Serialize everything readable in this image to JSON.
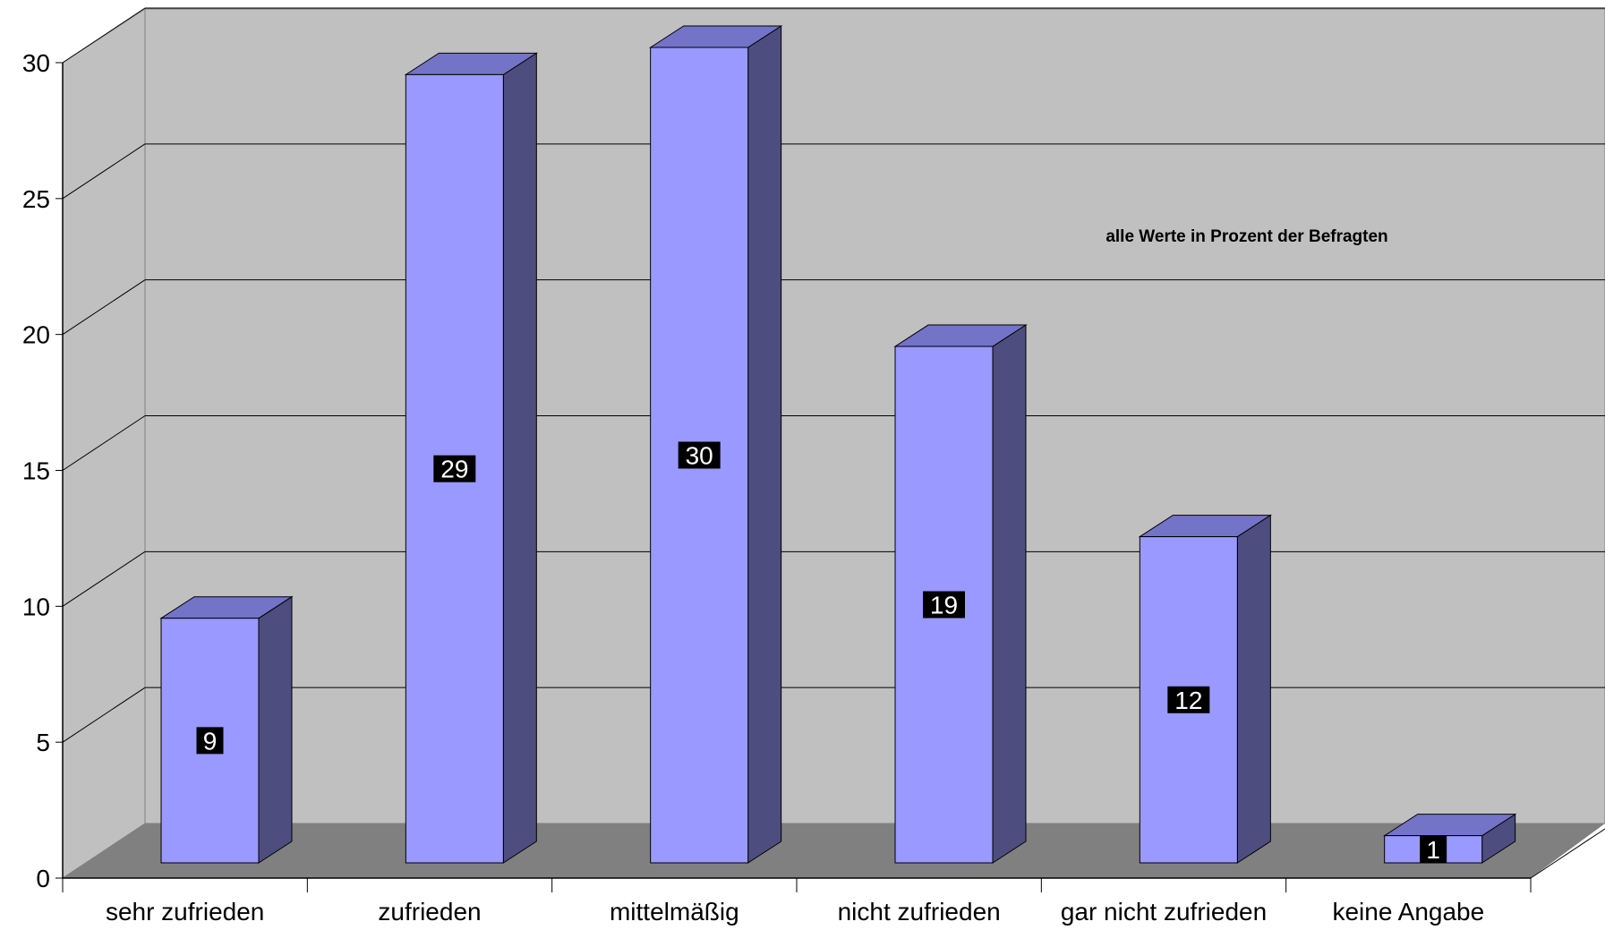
{
  "chart_data": {
    "type": "bar",
    "categories": [
      "sehr zufrieden",
      "zufrieden",
      "mittelmäßig",
      "nicht zufrieden",
      "gar nicht zufrieden",
      "keine Angabe"
    ],
    "values": [
      9,
      29,
      30,
      19,
      12,
      1
    ],
    "yticks": [
      "0",
      "5",
      "10",
      "15",
      "20",
      "25",
      "30"
    ],
    "ylim": [
      0,
      30
    ],
    "annotation": "alle Werte in Prozent der Befragten",
    "grid": true,
    "three_d": true,
    "colors": {
      "bar_front": "#9999ff",
      "bar_top": "#7373c8",
      "bar_side": "#4d4d7f",
      "wall": "#c0c0c0",
      "floor": "#808080",
      "label_bg": "#000000",
      "label_text": "#ffffff"
    }
  }
}
